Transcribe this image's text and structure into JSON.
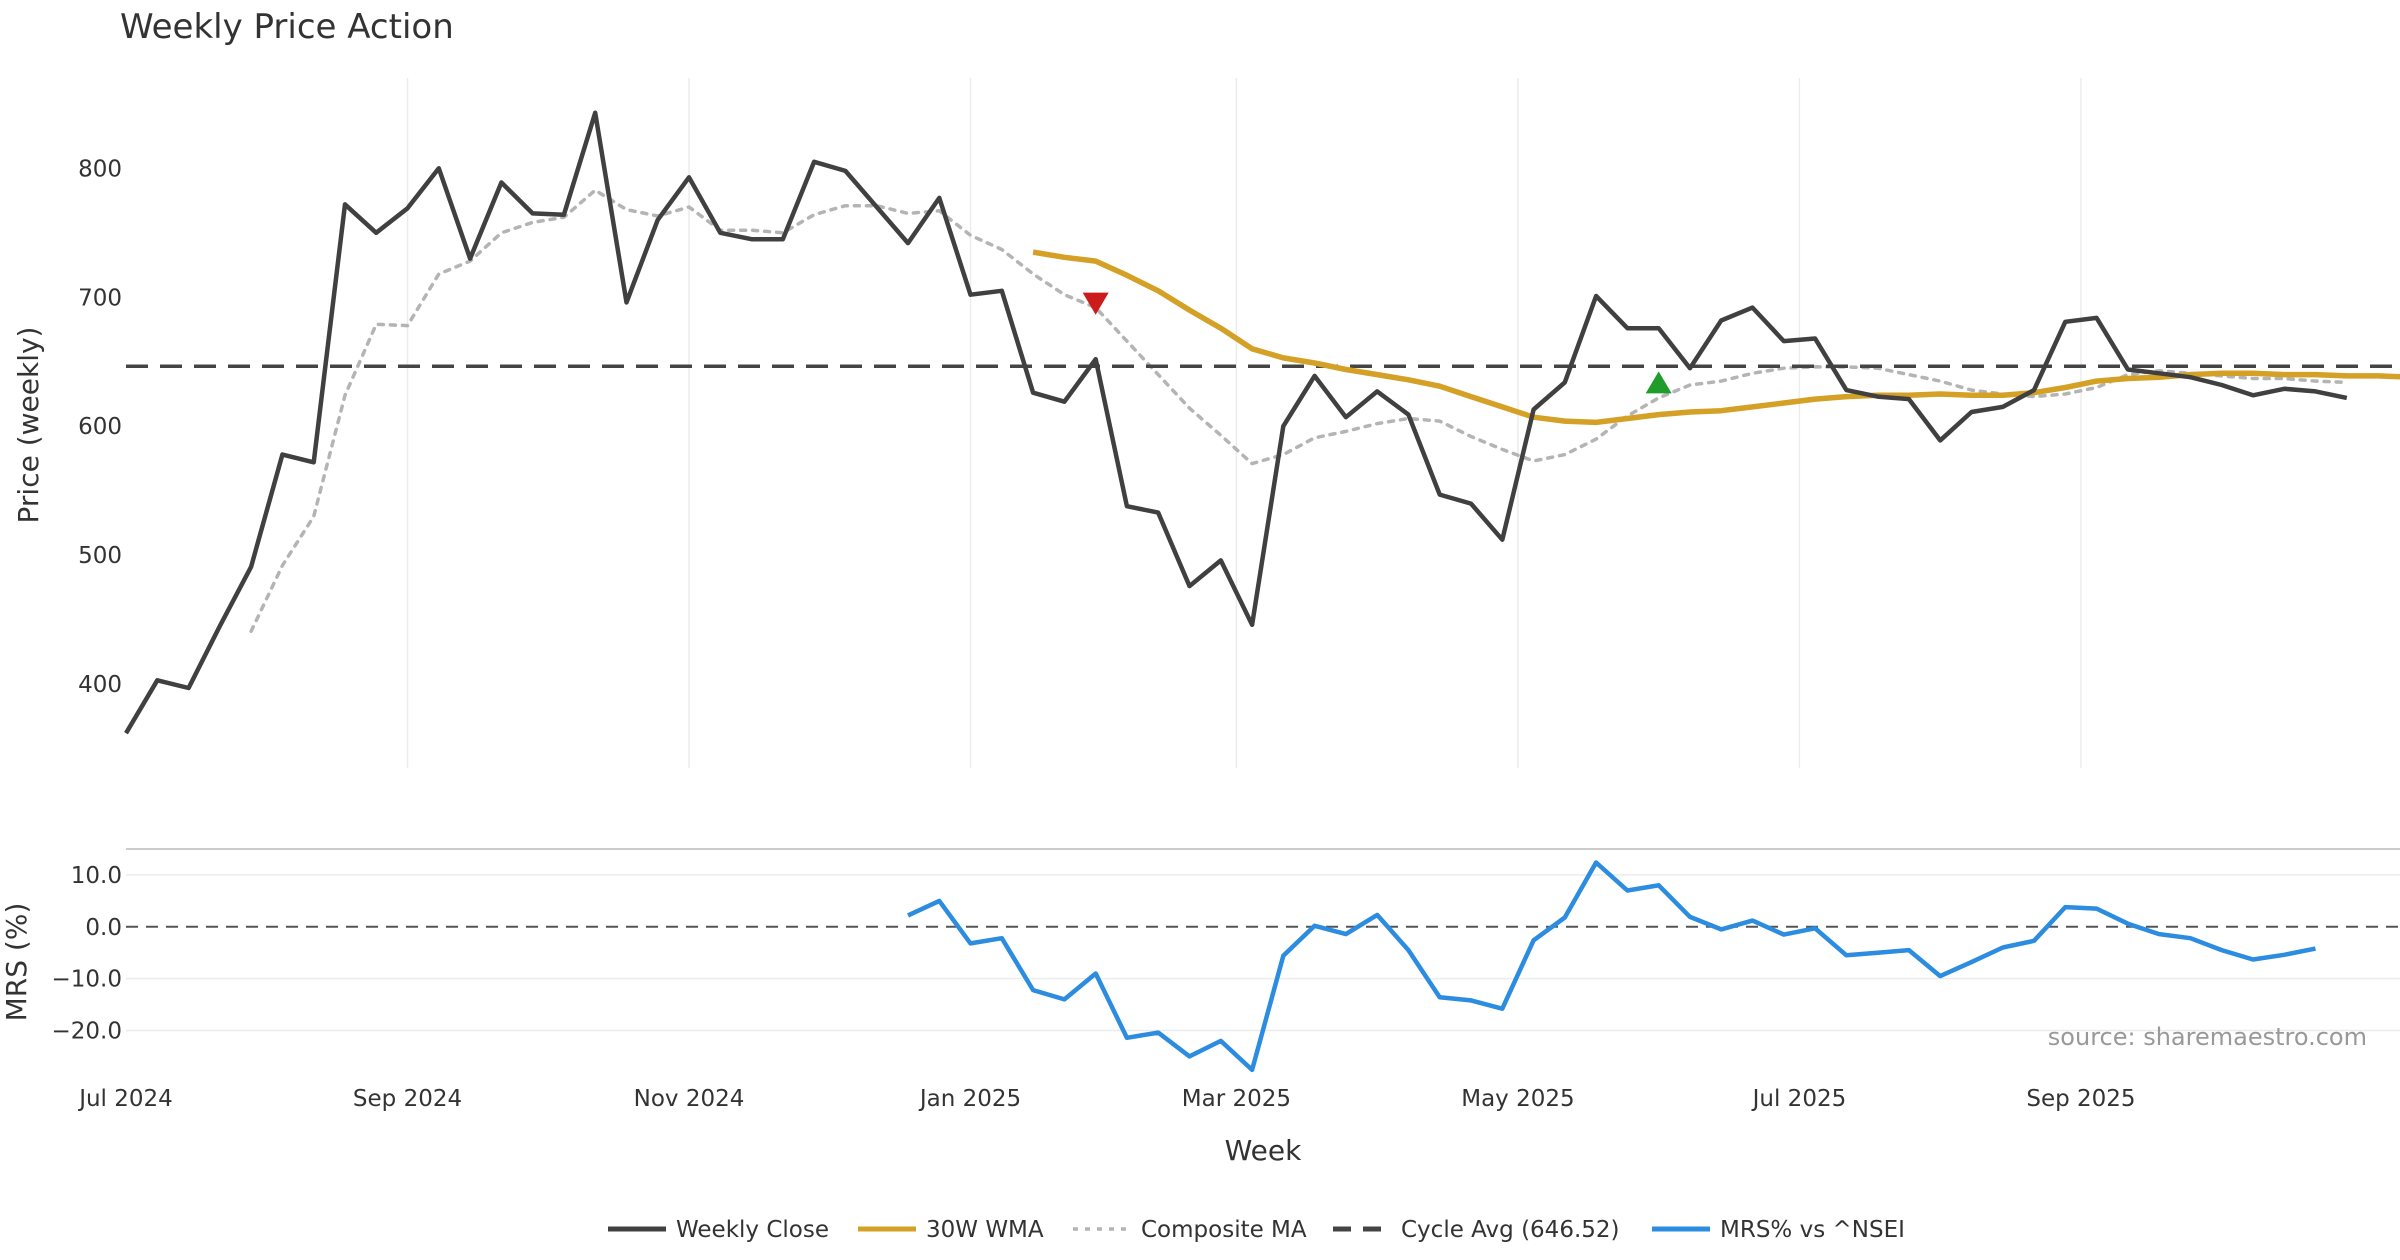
{
  "chart_data": {
    "type": "line",
    "title": "Weekly Price Action",
    "xlabel": "Week",
    "x_ticks": [
      "Jul 2024",
      "Sep 2024",
      "Nov 2024",
      "Jan 2025",
      "Mar 2025",
      "May 2025",
      "Jul 2025",
      "Sep 2025"
    ],
    "x_tick_weeks": [
      0,
      9,
      18,
      27,
      35.5,
      44.5,
      53.5,
      62.5
    ],
    "x_range": [
      0,
      72.7
    ],
    "price_panel": {
      "ylabel": "Price (weekly)",
      "ylim": [
        335,
        870
      ],
      "y_ticks": [
        "400",
        "500",
        "600",
        "700",
        "800"
      ],
      "y_tick_values": [
        400,
        500,
        600,
        700,
        800
      ],
      "series": [
        {
          "name": "Weekly Close",
          "color": "#404040",
          "style": "solid",
          "start_week": 0,
          "values": [
            362,
            403,
            397,
            445,
            491,
            578,
            572,
            772,
            750,
            769,
            800,
            730,
            789,
            765,
            764,
            843,
            696,
            760,
            793,
            750,
            745,
            745,
            805,
            798,
            770,
            742,
            777,
            702,
            705,
            626,
            619,
            652,
            538,
            533,
            476,
            496,
            446,
            600,
            639,
            607,
            627,
            609,
            547,
            540,
            512,
            613,
            634,
            701,
            676,
            676,
            645,
            682,
            692,
            666,
            668,
            628,
            623,
            621,
            589,
            611,
            615,
            628,
            681,
            684,
            644,
            641,
            638,
            632,
            624,
            629,
            627,
            622
          ]
        },
        {
          "name": "30W WMA",
          "color": "#D4A025",
          "style": "solid",
          "start_week": 29,
          "values": [
            735,
            731,
            728,
            717,
            705,
            690,
            676,
            660,
            653,
            649,
            644,
            640,
            636,
            631,
            623,
            615,
            607,
            604,
            603,
            606,
            609,
            611,
            612,
            615,
            618,
            621,
            623,
            624,
            624,
            625,
            624,
            624,
            626,
            630,
            635,
            637,
            638,
            640,
            641,
            641,
            640,
            640,
            639,
            639,
            638
          ]
        },
        {
          "name": "Composite MA",
          "color": "#B4B4B4",
          "style": "dotted",
          "start_week": 4,
          "values": [
            441,
            492,
            530,
            624,
            679,
            678,
            718,
            728,
            750,
            758,
            762,
            783,
            768,
            763,
            770,
            752,
            752,
            750,
            764,
            771,
            771,
            765,
            767,
            748,
            737,
            718,
            702,
            692,
            666,
            640,
            614,
            593,
            571,
            578,
            591,
            596,
            602,
            606,
            604,
            592,
            582,
            573,
            578,
            590,
            608,
            622,
            632,
            635,
            641,
            645,
            646,
            646,
            645,
            640,
            635,
            628,
            625,
            623,
            625,
            630,
            640,
            643,
            641,
            639,
            637,
            637,
            635,
            634
          ]
        },
        {
          "name": "Cycle Avg (646.52)",
          "color": "#444444",
          "style": "dashed",
          "constant": 646.52
        }
      ],
      "markers": [
        {
          "type": "sell",
          "shape": "triangle-down",
          "color": "#CC1B1B",
          "week": 31,
          "value": 695
        },
        {
          "type": "buy",
          "shape": "triangle-up",
          "color": "#1F9C2A",
          "week": 49,
          "value": 634
        }
      ]
    },
    "mrs_panel": {
      "ylabel": "MRS (%)",
      "ylim": [
        -28,
        15
      ],
      "y_ticks": [
        "10.0",
        "0.0",
        "−10.0",
        "−20.0"
      ],
      "y_tick_values": [
        10,
        0,
        -10,
        -20
      ],
      "zero_line": 0,
      "series": [
        {
          "name": "MRS% vs ^NSEI",
          "color": "#2B8CE0",
          "style": "solid",
          "start_week": 25,
          "values": [
            2.2,
            5,
            -3.2,
            -2.2,
            -12.2,
            -14,
            -9,
            -21.4,
            -20.4,
            -25,
            -22,
            -27.6,
            -5.6,
            0.2,
            -1.4,
            2.3,
            -4.5,
            -13.6,
            -14.2,
            -15.8,
            -2.6,
            1.8,
            12.4,
            7,
            8,
            1.9,
            -0.5,
            1.2,
            -1.5,
            -0.3,
            -5.5,
            -5,
            -4.5,
            -9.5,
            -6.8,
            -4,
            -2.7,
            3.8,
            3.5,
            0.6,
            -1.4,
            -2.2,
            -4.5,
            -6.3,
            -5.4,
            -4.2
          ]
        }
      ]
    },
    "legend": [
      {
        "label": "Weekly Close",
        "color": "#404040",
        "style": "solid"
      },
      {
        "label": "30W WMA",
        "color": "#D4A025",
        "style": "solid"
      },
      {
        "label": "Composite MA",
        "color": "#B4B4B4",
        "style": "dotted"
      },
      {
        "label": "Cycle Avg (646.52)",
        "color": "#444444",
        "style": "dashed"
      },
      {
        "label": "MRS% vs ^NSEI",
        "color": "#2B8CE0",
        "style": "solid"
      }
    ],
    "legend_position": "bottom-center",
    "source": "source: sharemaestro.com"
  }
}
